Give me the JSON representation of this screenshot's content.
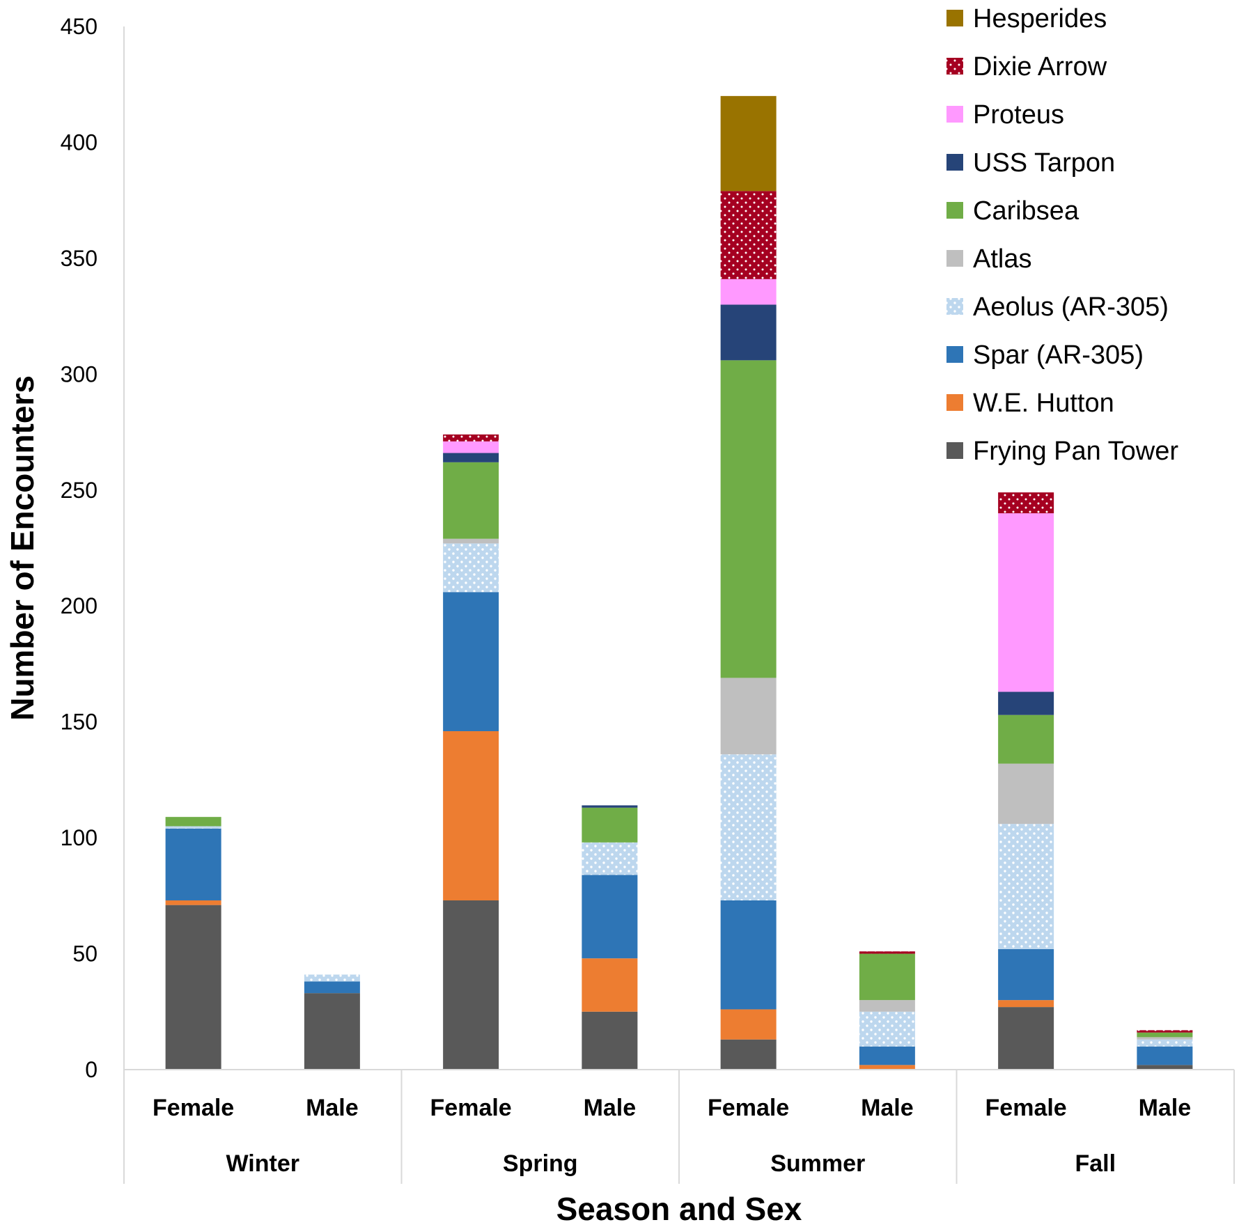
{
  "chart_data": {
    "type": "bar",
    "stacked": true,
    "title": "",
    "xlabel": "Season and Sex",
    "ylabel": "Number of Encounters",
    "ylim": [
      0,
      450
    ],
    "yticks": [
      0,
      50,
      100,
      150,
      200,
      250,
      300,
      350,
      400,
      450
    ],
    "categories": [
      "Female",
      "Male",
      "Female",
      "Male",
      "Female",
      "Male",
      "Female",
      "Male"
    ],
    "groups": [
      {
        "label": "Winter",
        "count": 2
      },
      {
        "label": "Spring",
        "count": 2
      },
      {
        "label": "Summer",
        "count": 2
      },
      {
        "label": "Fall",
        "count": 2
      }
    ],
    "legend_position": "top-right",
    "series": [
      {
        "name": "Frying Pan Tower",
        "color": "#595959",
        "pattern": "solid",
        "values": [
          71,
          33,
          73,
          25,
          13,
          0,
          27,
          2
        ]
      },
      {
        "name": "W.E. Hutton",
        "color": "#ed7d31",
        "pattern": "solid",
        "values": [
          2,
          0,
          73,
          23,
          13,
          2,
          3,
          0
        ]
      },
      {
        "name": "Spar (AR-305)",
        "color": "#2e75b6",
        "pattern": "solid",
        "values": [
          31,
          5,
          60,
          36,
          47,
          8,
          22,
          8
        ]
      },
      {
        "name": "Aeolus (AR-305)",
        "color": "#bdd7ee",
        "pattern": "dots",
        "values": [
          1,
          3,
          21,
          14,
          63,
          15,
          54,
          3
        ]
      },
      {
        "name": "Atlas",
        "color": "#bfbfbf",
        "pattern": "solid",
        "values": [
          0,
          0,
          2,
          0,
          33,
          5,
          26,
          1
        ]
      },
      {
        "name": "Caribsea",
        "color": "#70ad47",
        "pattern": "solid",
        "values": [
          4,
          0,
          33,
          15,
          137,
          20,
          21,
          2
        ]
      },
      {
        "name": "USS Tarpon",
        "color": "#264478",
        "pattern": "solid",
        "values": [
          0,
          0,
          4,
          1,
          24,
          0,
          10,
          0
        ]
      },
      {
        "name": "Proteus",
        "color": "#ff99ff",
        "pattern": "solid",
        "values": [
          0,
          0,
          5,
          0,
          11,
          0,
          77,
          0
        ]
      },
      {
        "name": "Dixie Arrow",
        "color": "#a50021",
        "pattern": "dots",
        "values": [
          0,
          0,
          3,
          0,
          38,
          1,
          9,
          1
        ]
      },
      {
        "name": "Hesperides",
        "color": "#997300",
        "pattern": "solid",
        "values": [
          0,
          0,
          0,
          0,
          41,
          0,
          0,
          0
        ]
      }
    ]
  }
}
